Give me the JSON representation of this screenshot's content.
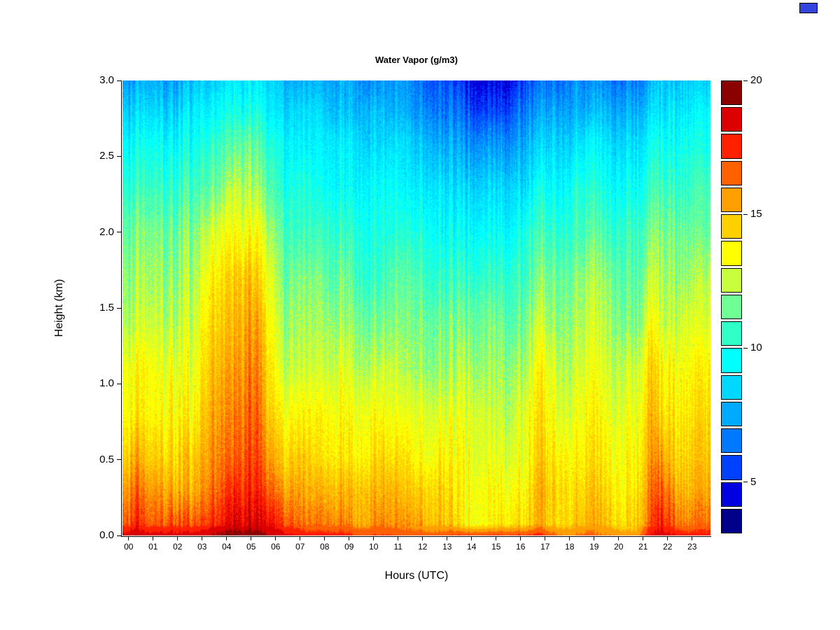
{
  "page": {
    "background": "#ffffff"
  },
  "corner_swatch": {
    "color": "#3344DD"
  },
  "chart_data": {
    "type": "heatmap",
    "title": "Water Vapor (g/m3)",
    "xlabel": "Hours (UTC)",
    "ylabel": "Height (km)",
    "x_tick_labels": [
      "00",
      "01",
      "02",
      "03",
      "04",
      "05",
      "06",
      "07",
      "08",
      "09",
      "10",
      "11",
      "12",
      "13",
      "14",
      "15",
      "16",
      "17",
      "18",
      "19",
      "20",
      "21",
      "22",
      "23"
    ],
    "x_tick_values": [
      0,
      1,
      2,
      3,
      4,
      5,
      6,
      7,
      8,
      9,
      10,
      11,
      12,
      13,
      14,
      15,
      16,
      17,
      18,
      19,
      20,
      21,
      22,
      23
    ],
    "y_tick_labels": [
      "0.0",
      "0.5",
      "1.0",
      "1.5",
      "2.0",
      "2.5",
      "3.0"
    ],
    "y_tick_values": [
      0,
      0.5,
      1,
      1.5,
      2,
      2.5,
      3
    ],
    "xlim": [
      0,
      24
    ],
    "ylim": [
      0,
      3
    ],
    "grid": false,
    "legend_position": "right",
    "colorbar": {
      "range": [
        3,
        20
      ],
      "tick_values": [
        5,
        10,
        15,
        20
      ],
      "tick_labels": [
        "5",
        "10",
        "15",
        "20"
      ],
      "colors": [
        "#00008B",
        "#0000E0",
        "#0040FF",
        "#0078FF",
        "#00AAFF",
        "#00D8FF",
        "#00FFFF",
        "#30FFC8",
        "#70FF94",
        "#C8FF3C",
        "#FFFF00",
        "#FFD000",
        "#FFA000",
        "#FF6000",
        "#FF2000",
        "#DC0000",
        "#8B0000"
      ]
    },
    "x": [
      0,
      0.5,
      1,
      1.5,
      2,
      2.5,
      3,
      3.5,
      4,
      4.5,
      5,
      5.5,
      6,
      6.5,
      7,
      7.5,
      8,
      8.5,
      9,
      9.5,
      10,
      10.5,
      11,
      11.5,
      12,
      12.5,
      13,
      13.5,
      14,
      14.5,
      15,
      15.5,
      16,
      16.5,
      17,
      17.5,
      18,
      18.5,
      19,
      19.5,
      20,
      20.5,
      21,
      21.5,
      22,
      22.5,
      23,
      23.5
    ],
    "heights": [
      0.0,
      0.08,
      0.3,
      0.5,
      0.8,
      1.1,
      1.4,
      1.7,
      2.0,
      2.3,
      2.6,
      2.8,
      3.0
    ],
    "values": [
      [
        18.5,
        16.5,
        15.5,
        14.5,
        13.5,
        13.5,
        12.5,
        12.0,
        11.5,
        10.5,
        9.5,
        8.5,
        7.5
      ],
      [
        19.0,
        17.5,
        16.5,
        15.5,
        14.0,
        13.5,
        12.5,
        12.0,
        11.5,
        10.5,
        9.5,
        8.5,
        7.5
      ],
      [
        18.5,
        16.5,
        15.5,
        14.5,
        13.5,
        13.5,
        12.5,
        12.0,
        11.5,
        10.5,
        9.5,
        8.5,
        7.5
      ],
      [
        18.5,
        16.5,
        15.5,
        14.5,
        13.5,
        13.0,
        12.5,
        12.0,
        11.5,
        10.5,
        9.5,
        8.5,
        7.5
      ],
      [
        18.5,
        17.0,
        15.5,
        14.5,
        14.0,
        13.5,
        12.5,
        12.0,
        11.5,
        10.5,
        9.5,
        8.5,
        7.5
      ],
      [
        18.5,
        16.5,
        15.0,
        14.5,
        13.5,
        13.0,
        12.5,
        12.0,
        11.5,
        10.5,
        9.5,
        8.5,
        7.5
      ],
      [
        18.5,
        16.5,
        15.0,
        14.5,
        13.5,
        13.0,
        12.5,
        12.0,
        11.5,
        10.5,
        9.5,
        9.0,
        8.0
      ],
      [
        19.0,
        17.5,
        16.5,
        16.0,
        15.5,
        15.0,
        14.5,
        14.0,
        13.0,
        11.5,
        10.5,
        9.5,
        8.5
      ],
      [
        19.5,
        18.0,
        17.0,
        16.5,
        16.0,
        15.5,
        15.0,
        14.5,
        13.5,
        12.0,
        11.0,
        10.0,
        9.0
      ],
      [
        19.5,
        18.5,
        17.5,
        16.5,
        16.0,
        15.5,
        15.0,
        14.5,
        13.5,
        12.5,
        11.0,
        10.0,
        9.0
      ],
      [
        19.5,
        18.5,
        17.5,
        17.0,
        16.5,
        16.0,
        15.5,
        15.0,
        13.5,
        12.5,
        11.5,
        10.0,
        9.0
      ],
      [
        19.5,
        18.5,
        17.5,
        17.0,
        16.5,
        16.0,
        15.5,
        14.5,
        13.5,
        12.0,
        11.0,
        10.0,
        9.0
      ],
      [
        19.0,
        18.0,
        16.5,
        15.5,
        14.5,
        14.0,
        13.5,
        13.0,
        12.0,
        11.0,
        10.0,
        9.0,
        8.5
      ],
      [
        18.5,
        17.0,
        15.5,
        14.5,
        13.5,
        12.5,
        12.0,
        11.5,
        11.0,
        10.0,
        9.5,
        8.5,
        8.0
      ],
      [
        18.0,
        16.5,
        15.5,
        14.5,
        13.5,
        12.5,
        12.0,
        11.5,
        10.5,
        10.0,
        9.0,
        8.5,
        7.5
      ],
      [
        17.5,
        16.0,
        15.0,
        14.5,
        13.5,
        12.5,
        12.0,
        11.5,
        10.5,
        10.0,
        9.0,
        8.5,
        7.5
      ],
      [
        17.5,
        16.0,
        15.0,
        14.0,
        13.5,
        12.5,
        12.0,
        11.5,
        10.5,
        9.5,
        9.0,
        8.5,
        7.5
      ],
      [
        17.5,
        16.0,
        15.0,
        14.0,
        13.5,
        12.5,
        12.0,
        11.0,
        10.5,
        9.5,
        9.0,
        8.0,
        7.5
      ],
      [
        17.5,
        16.0,
        15.0,
        14.0,
        13.5,
        13.0,
        12.0,
        11.5,
        10.5,
        9.5,
        9.0,
        8.0,
        7.5
      ],
      [
        17.0,
        15.5,
        15.0,
        14.0,
        13.5,
        12.5,
        12.0,
        11.0,
        10.5,
        9.5,
        9.0,
        8.0,
        7.5
      ],
      [
        17.0,
        15.5,
        15.0,
        14.0,
        13.5,
        12.5,
        11.5,
        10.5,
        10.0,
        9.5,
        8.5,
        8.0,
        7.0
      ],
      [
        17.0,
        16.0,
        15.0,
        14.5,
        13.5,
        12.5,
        11.5,
        10.5,
        10.0,
        9.5,
        8.5,
        8.0,
        7.0
      ],
      [
        17.0,
        15.5,
        15.0,
        14.0,
        13.0,
        12.5,
        11.5,
        11.0,
        10.0,
        9.5,
        8.5,
        7.5,
        7.0
      ],
      [
        16.5,
        15.5,
        14.5,
        14.0,
        13.0,
        12.0,
        11.5,
        11.0,
        10.0,
        9.0,
        8.5,
        7.5,
        7.0
      ],
      [
        16.5,
        15.5,
        14.5,
        13.5,
        13.0,
        12.0,
        11.5,
        11.0,
        10.0,
        9.0,
        8.0,
        7.0,
        6.5
      ],
      [
        16.5,
        15.0,
        14.5,
        13.5,
        13.0,
        12.0,
        11.5,
        10.5,
        10.0,
        9.0,
        8.0,
        7.0,
        6.0
      ],
      [
        16.5,
        15.0,
        14.5,
        14.0,
        13.0,
        12.0,
        11.5,
        10.5,
        9.5,
        9.0,
        7.5,
        6.5,
        6.0
      ],
      [
        17.0,
        14.5,
        14.0,
        13.5,
        13.0,
        12.0,
        11.5,
        10.5,
        9.5,
        8.5,
        7.5,
        6.5,
        5.5
      ],
      [
        17.0,
        13.5,
        13.5,
        13.5,
        13.0,
        12.5,
        11.5,
        10.5,
        9.5,
        8.5,
        7.0,
        6.0,
        5.0
      ],
      [
        17.0,
        13.5,
        13.5,
        13.0,
        13.0,
        12.0,
        11.5,
        10.5,
        9.5,
        8.5,
        7.0,
        5.5,
        4.5
      ],
      [
        17.0,
        13.5,
        13.5,
        13.0,
        12.5,
        12.0,
        11.5,
        10.5,
        9.5,
        8.5,
        7.0,
        5.5,
        4.5
      ],
      [
        17.0,
        14.0,
        13.5,
        13.0,
        12.5,
        12.0,
        11.5,
        10.5,
        9.5,
        8.5,
        7.0,
        5.5,
        4.5
      ],
      [
        17.0,
        14.0,
        13.5,
        13.0,
        12.5,
        12.0,
        11.0,
        10.5,
        9.5,
        8.5,
        7.0,
        6.0,
        5.0
      ],
      [
        17.0,
        14.0,
        13.5,
        13.0,
        13.0,
        12.0,
        11.5,
        10.5,
        10.0,
        8.5,
        7.5,
        6.5,
        5.5
      ],
      [
        17.5,
        15.5,
        15.5,
        15.0,
        14.5,
        14.0,
        13.0,
        12.0,
        11.0,
        10.0,
        8.5,
        7.5,
        6.5
      ],
      [
        16.5,
        14.5,
        14.5,
        14.0,
        13.5,
        13.0,
        12.0,
        11.5,
        10.5,
        9.5,
        8.5,
        7.5,
        6.5
      ],
      [
        16.0,
        14.5,
        14.5,
        14.0,
        13.0,
        12.5,
        12.0,
        11.5,
        10.5,
        9.5,
        8.5,
        7.5,
        6.5
      ],
      [
        16.0,
        14.5,
        14.0,
        13.5,
        13.0,
        12.5,
        12.0,
        11.5,
        10.5,
        10.0,
        8.5,
        7.5,
        7.0
      ],
      [
        16.5,
        15.5,
        15.0,
        14.5,
        14.0,
        13.5,
        13.0,
        12.5,
        11.5,
        10.5,
        9.5,
        8.0,
        7.0
      ],
      [
        16.0,
        15.0,
        14.5,
        14.0,
        13.5,
        13.0,
        12.5,
        12.0,
        11.0,
        10.0,
        9.0,
        8.0,
        7.0
      ],
      [
        16.0,
        14.5,
        14.0,
        13.5,
        13.0,
        12.5,
        12.0,
        11.5,
        10.5,
        9.5,
        8.5,
        7.5,
        6.5
      ],
      [
        15.5,
        14.0,
        13.5,
        13.5,
        13.0,
        12.5,
        11.5,
        11.0,
        10.5,
        9.5,
        8.5,
        7.5,
        6.5
      ],
      [
        15.5,
        14.5,
        14.0,
        13.5,
        13.0,
        12.5,
        11.5,
        11.0,
        10.5,
        9.5,
        8.5,
        7.5,
        6.5
      ],
      [
        18.0,
        17.0,
        16.5,
        16.0,
        15.5,
        15.0,
        14.0,
        13.0,
        12.0,
        11.0,
        10.0,
        9.0,
        8.0
      ],
      [
        18.5,
        17.5,
        16.5,
        15.5,
        14.0,
        13.5,
        12.5,
        12.0,
        11.5,
        10.5,
        9.5,
        8.5,
        8.0
      ],
      [
        18.0,
        16.5,
        15.5,
        14.5,
        14.0,
        13.5,
        12.5,
        12.0,
        11.5,
        10.5,
        9.5,
        9.0,
        8.0
      ],
      [
        17.5,
        16.0,
        15.0,
        14.5,
        14.0,
        13.5,
        13.0,
        12.0,
        11.5,
        10.5,
        10.0,
        9.0,
        8.5
      ],
      [
        17.5,
        16.5,
        15.5,
        15.0,
        14.5,
        14.0,
        13.0,
        12.5,
        11.5,
        11.0,
        10.0,
        9.5,
        8.5
      ]
    ]
  }
}
